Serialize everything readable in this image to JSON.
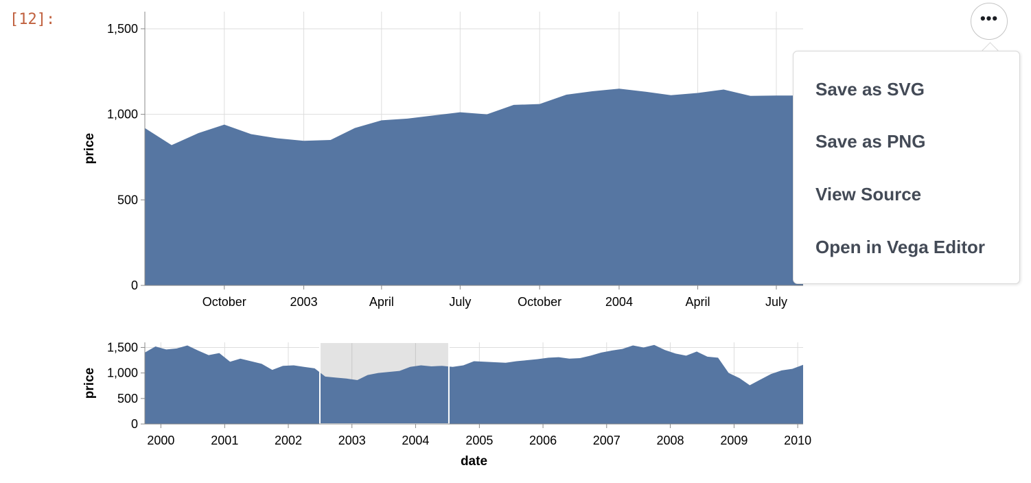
{
  "cell_prompt": "[12]:",
  "actions": {
    "button_icon": "more-horizontal-icon",
    "button_glyph": "•••",
    "menu_items": [
      "Save as SVG",
      "Save as PNG",
      "View Source",
      "Open in Vega Editor"
    ]
  },
  "colors": {
    "area": "#5676a2",
    "brush": "#e3e3e3",
    "grid": "#dddddd",
    "axis": "#888888",
    "prompt": "#c0603e"
  },
  "chart_data": [
    {
      "type": "area",
      "ylabel": "price",
      "xlabel": "",
      "ylim": [
        0,
        1600
      ],
      "xlim": [
        "2002-07-01",
        "2004-08-01"
      ],
      "y_ticks": [
        "0",
        "500",
        "1,000",
        "1,500"
      ],
      "x_ticks": [
        "October",
        "2003",
        "April",
        "July",
        "October",
        "2004",
        "April",
        "July"
      ],
      "grid": true,
      "x": [
        "2002-07-01",
        "2002-08-01",
        "2002-09-01",
        "2002-10-01",
        "2002-11-01",
        "2002-12-01",
        "2003-01-01",
        "2003-02-01",
        "2003-03-01",
        "2003-04-01",
        "2003-05-01",
        "2003-06-01",
        "2003-07-01",
        "2003-08-01",
        "2003-09-01",
        "2003-10-01",
        "2003-11-01",
        "2003-12-01",
        "2004-01-01",
        "2004-02-01",
        "2004-03-01",
        "2004-04-01",
        "2004-05-01",
        "2004-06-01",
        "2004-07-01",
        "2004-08-01"
      ],
      "values": [
        920,
        820,
        890,
        940,
        884,
        860,
        845,
        850,
        920,
        965,
        975,
        994,
        1012,
        1000,
        1055,
        1060,
        1115,
        1135,
        1150,
        1132,
        1112,
        1125,
        1145,
        1108,
        1110,
        1110
      ]
    },
    {
      "type": "area",
      "ylabel": "price",
      "xlabel": "date",
      "ylim": [
        0,
        1600
      ],
      "xlim": [
        "1999-10-01",
        "2010-02-01"
      ],
      "y_ticks": [
        "0",
        "500",
        "1,000",
        "1,500"
      ],
      "x_ticks": [
        "2000",
        "2001",
        "2002",
        "2003",
        "2004",
        "2005",
        "2006",
        "2007",
        "2008",
        "2009",
        "2010"
      ],
      "grid": true,
      "brush": [
        "2002-07-01",
        "2004-07-10"
      ],
      "x": [
        "1999-10-01",
        "1999-12-01",
        "2000-02-01",
        "2000-04-01",
        "2000-06-01",
        "2000-08-01",
        "2000-10-01",
        "2000-12-01",
        "2001-02-01",
        "2001-04-01",
        "2001-06-01",
        "2001-08-01",
        "2001-10-01",
        "2001-12-01",
        "2002-02-01",
        "2002-04-01",
        "2002-06-01",
        "2002-08-01",
        "2002-10-01",
        "2002-12-01",
        "2003-02-01",
        "2003-04-01",
        "2003-06-01",
        "2003-08-01",
        "2003-10-01",
        "2003-12-01",
        "2004-02-01",
        "2004-04-01",
        "2004-06-01",
        "2004-08-01",
        "2004-10-01",
        "2004-12-01",
        "2005-02-01",
        "2005-04-01",
        "2005-06-01",
        "2005-08-01",
        "2005-10-01",
        "2005-12-01",
        "2006-02-01",
        "2006-04-01",
        "2006-06-01",
        "2006-08-01",
        "2006-10-01",
        "2006-12-01",
        "2007-02-01",
        "2007-04-01",
        "2007-06-01",
        "2007-08-01",
        "2007-10-01",
        "2007-12-01",
        "2008-02-01",
        "2008-04-01",
        "2008-06-01",
        "2008-08-01",
        "2008-10-01",
        "2008-12-01",
        "2009-02-01",
        "2009-04-01",
        "2009-06-01",
        "2009-08-01",
        "2009-10-01",
        "2009-12-01",
        "2010-02-01"
      ],
      "values": [
        1400,
        1520,
        1460,
        1480,
        1540,
        1440,
        1350,
        1390,
        1220,
        1280,
        1230,
        1180,
        1060,
        1140,
        1150,
        1120,
        1090,
        930,
        910,
        890,
        860,
        960,
        1000,
        1020,
        1040,
        1120,
        1150,
        1130,
        1140,
        1120,
        1150,
        1230,
        1220,
        1210,
        1200,
        1230,
        1250,
        1270,
        1300,
        1310,
        1280,
        1290,
        1340,
        1400,
        1440,
        1470,
        1540,
        1500,
        1550,
        1450,
        1380,
        1340,
        1420,
        1320,
        1300,
        1000,
        900,
        760,
        870,
        980,
        1050,
        1080,
        1160
      ]
    }
  ]
}
